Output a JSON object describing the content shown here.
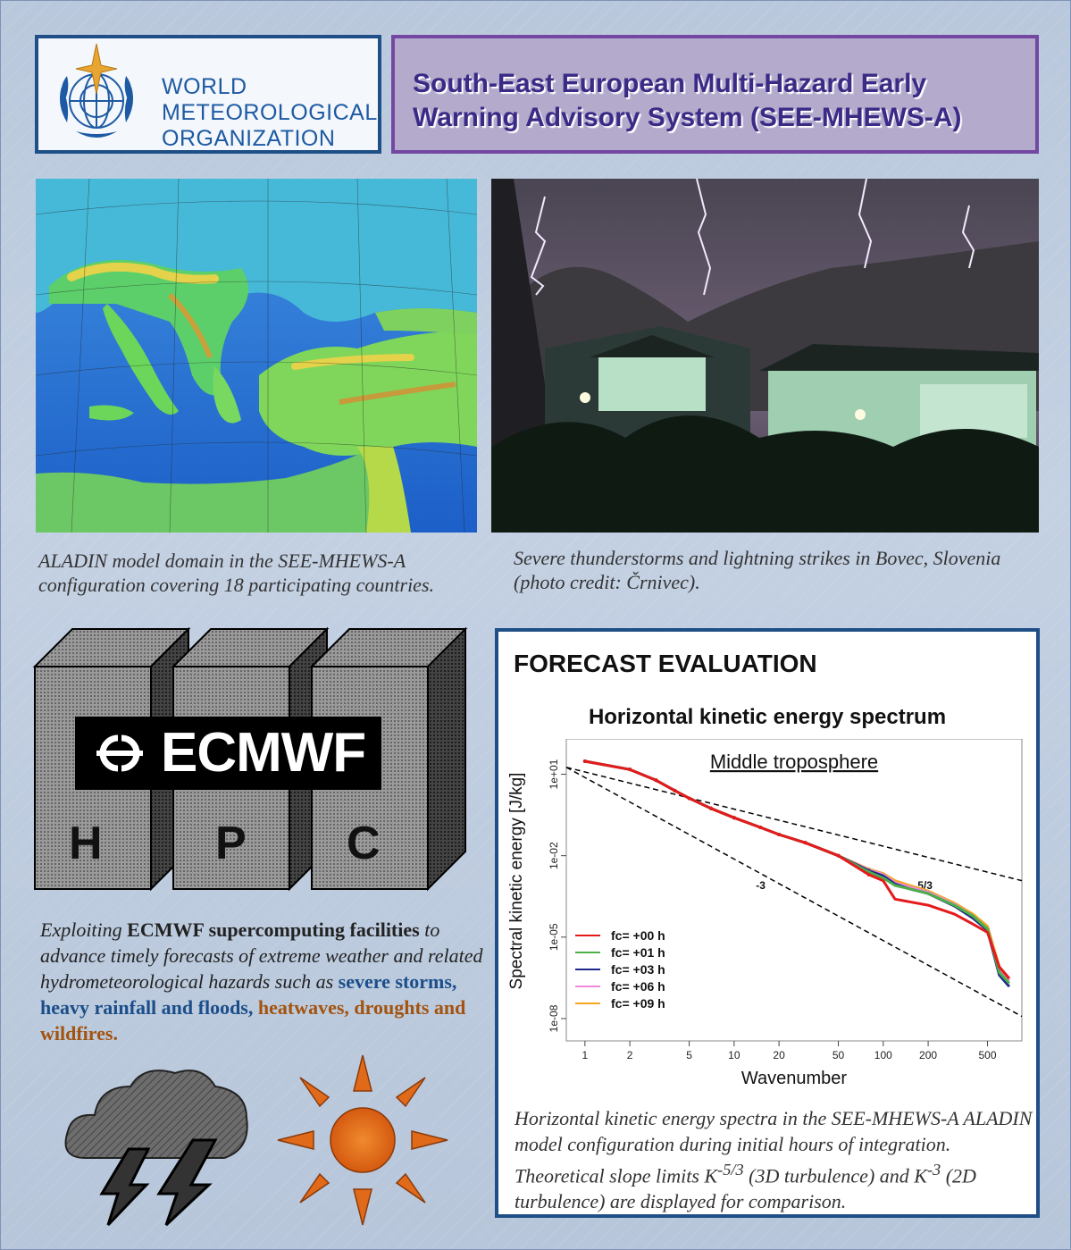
{
  "header": {
    "org_line1": "WORLD",
    "org_line2": "METEOROLOGICAL",
    "org_line3": "ORGANIZATION",
    "title_line1": "South-East European Multi-Hazard Early",
    "title_line2": "Warning Advisory System (SEE-MHEWS-A)"
  },
  "captions": {
    "map": "ALADIN model domain in the SEE-MHEWS-A configuration covering 18 participating countries.",
    "storm": "Severe thunderstorms and lightning strikes in Bovec, Slovenia (photo credit: Črnivec)."
  },
  "hpc": {
    "logo_text": "ECMWF",
    "letters": [
      "H",
      "P",
      "C"
    ],
    "desc_part1": "Exploiting",
    "desc_bold": "ECMWF supercomputing facilities",
    "desc_part2": "to advance timely forecasts of extreme weather and related hydrometeorological hazards such as",
    "desc_blue": "severe storms, heavy rainfall and floods,",
    "desc_brown": "heatwaves, droughts and wildfires."
  },
  "forecast": {
    "heading": "FORECAST EVALUATION",
    "caption_part1": "Horizontal kinetic energy spectra in the SEE-MHEWS-A ALADIN model configuration during initial hours of integration. Theoretical slope limits K",
    "exp1": "-5/3",
    "caption_part2": " (3D turbulence) and K",
    "exp2": "-3",
    "caption_part3": " (2D turbulence) are displayed for comparison."
  },
  "chart_data": {
    "type": "line",
    "title": "Horizontal kinetic energy spectrum",
    "subtitle": "Middle troposphere",
    "xlabel": "Wavenumber",
    "ylabel": "Spectral kinetic energy [J/kg]",
    "x_scale": "log",
    "y_scale": "log",
    "xlim": [
      0.75,
      850
    ],
    "ylim": [
      1.5e-09,
      200.0
    ],
    "x_ticks": [
      1,
      2,
      5,
      10,
      20,
      50,
      100,
      200,
      500
    ],
    "x_tick_labels": [
      "1",
      "2",
      "5",
      "10",
      "20",
      "50",
      "100",
      "200",
      "500"
    ],
    "y_ticks": [
      10,
      0.01,
      1e-05,
      1e-08
    ],
    "y_tick_labels": [
      "1e+01",
      "1e-02",
      "1e-05",
      "1e-08"
    ],
    "legend_position": "bottom-left",
    "series": [
      {
        "name": "fc= +00 h",
        "color": "#e41a1c",
        "x": [
          1,
          2,
          3,
          4,
          5,
          7,
          10,
          15,
          20,
          30,
          50,
          80,
          100,
          120,
          150,
          200,
          300,
          400,
          500,
          600,
          700
        ],
        "y": [
          30,
          15,
          6,
          2.5,
          1.3,
          0.55,
          0.25,
          0.11,
          0.06,
          0.03,
          0.01,
          0.002,
          0.0012,
          0.00025,
          0.0002,
          0.00015,
          7e-05,
          3e-05,
          1.5e-05,
          8e-07,
          3e-07
        ]
      },
      {
        "name": "fc= +01 h",
        "color": "#4daf4a",
        "x": [
          1,
          2,
          3,
          4,
          5,
          7,
          10,
          15,
          20,
          30,
          50,
          80,
          100,
          120,
          150,
          200,
          300,
          400,
          500,
          600,
          700
        ],
        "y": [
          30,
          15,
          6,
          2.5,
          1.3,
          0.55,
          0.25,
          0.11,
          0.06,
          0.03,
          0.01,
          0.0025,
          0.0015,
          0.0008,
          0.0006,
          0.0004,
          0.00015,
          6e-05,
          2e-05,
          5e-07,
          2e-07
        ]
      },
      {
        "name": "fc= +03 h",
        "color": "#1f2a8a",
        "x": [
          1,
          2,
          3,
          4,
          5,
          7,
          10,
          15,
          20,
          30,
          50,
          80,
          100,
          120,
          150,
          200,
          300,
          400,
          500,
          600,
          700
        ],
        "y": [
          30,
          15,
          6,
          2.5,
          1.3,
          0.55,
          0.25,
          0.11,
          0.06,
          0.03,
          0.01,
          0.0028,
          0.0018,
          0.0009,
          0.0006,
          0.0004,
          0.00014,
          5e-05,
          1.8e-05,
          4e-07,
          1.5e-07
        ]
      },
      {
        "name": "fc= +06 h",
        "color": "#f08ad8",
        "x": [
          1,
          2,
          3,
          4,
          5,
          7,
          10,
          15,
          20,
          30,
          50,
          80,
          100,
          120,
          150,
          200,
          300,
          400,
          500,
          600,
          700
        ],
        "y": [
          30,
          15,
          6,
          2.5,
          1.3,
          0.55,
          0.25,
          0.11,
          0.06,
          0.03,
          0.01,
          0.003,
          0.002,
          0.001,
          0.0007,
          0.00045,
          0.00016,
          6e-05,
          2e-05,
          6e-07,
          2.5e-07
        ]
      },
      {
        "name": "fc= +09 h",
        "color": "#f5a623",
        "x": [
          1,
          2,
          3,
          4,
          5,
          7,
          10,
          15,
          20,
          30,
          50,
          80,
          100,
          120,
          150,
          200,
          300,
          400,
          500,
          600,
          700
        ],
        "y": [
          30,
          15,
          6,
          2.5,
          1.3,
          0.55,
          0.25,
          0.11,
          0.06,
          0.03,
          0.01,
          0.0032,
          0.0022,
          0.0012,
          0.0008,
          0.0005,
          0.00018,
          7e-05,
          2.5e-05,
          8e-07,
          3e-07
        ]
      }
    ],
    "reference_lines": [
      {
        "label": "5/3",
        "x": [
          0.75,
          850
        ],
        "y": [
          18,
          0.0012
        ]
      },
      {
        "label": "-3",
        "x": [
          0.75,
          850
        ],
        "y": [
          18,
          1.2e-08
        ]
      }
    ]
  }
}
